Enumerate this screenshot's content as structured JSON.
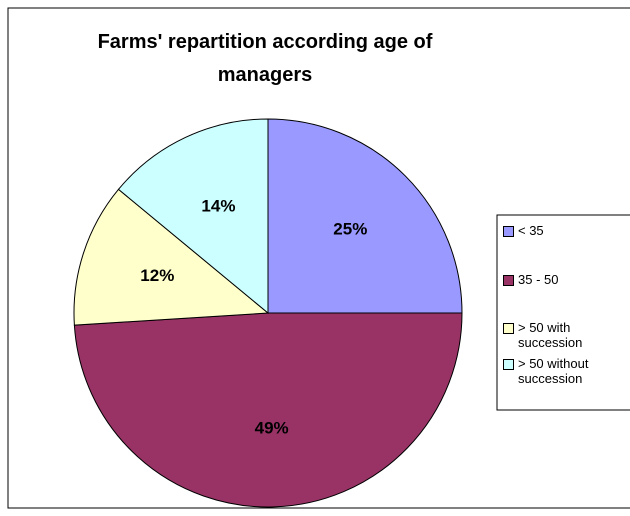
{
  "chart_data": {
    "type": "pie",
    "title": "Farms' repartition according age of managers",
    "categories": [
      "< 35",
      "35 - 50",
      "> 50 with succession",
      "> 50 without succession"
    ],
    "values": [
      25,
      49,
      12,
      14
    ],
    "colors": [
      "#9999ff",
      "#993366",
      "#ffffcc",
      "#ccffff"
    ],
    "legend": "right"
  }
}
